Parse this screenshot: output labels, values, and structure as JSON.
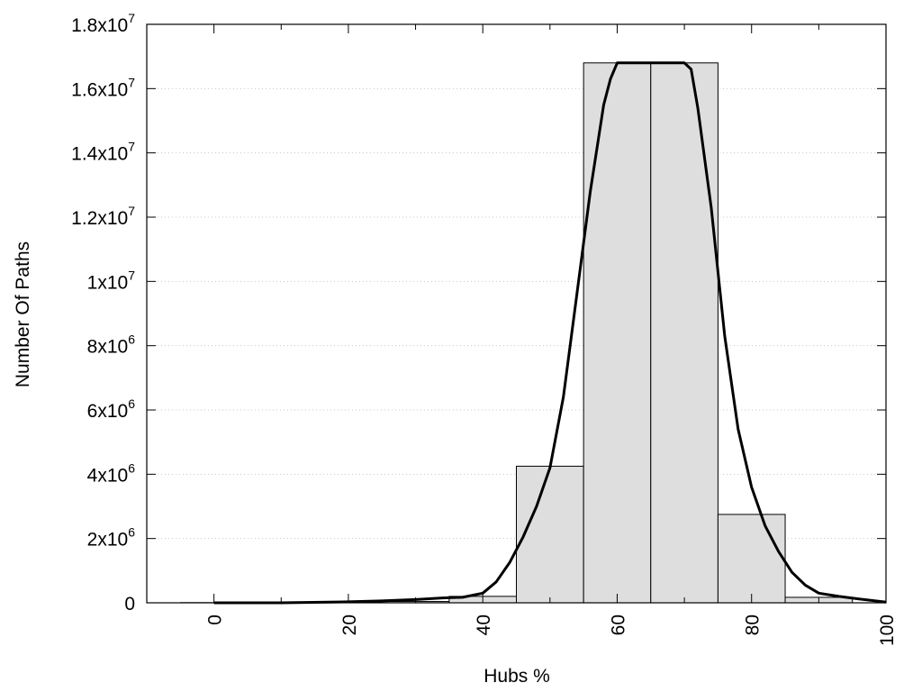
{
  "chart_data": {
    "type": "bar",
    "xlabel": "Hubs %",
    "ylabel": "Number Of Paths",
    "xlim": [
      -10,
      100
    ],
    "ylim": [
      0,
      18000000
    ],
    "x_ticks": [
      {
        "value": 0,
        "label": "0"
      },
      {
        "value": 20,
        "label": "20"
      },
      {
        "value": 40,
        "label": "40"
      },
      {
        "value": 60,
        "label": "60"
      },
      {
        "value": 80,
        "label": "80"
      },
      {
        "value": 100,
        "label": "100"
      }
    ],
    "x_minor_ticks": [
      10,
      30,
      50,
      70,
      90
    ],
    "y_ticks": [
      {
        "value": 0,
        "mant": "0",
        "exp": ""
      },
      {
        "value": 2000000,
        "mant": "2x10",
        "exp": "6"
      },
      {
        "value": 4000000,
        "mant": "4x10",
        "exp": "6"
      },
      {
        "value": 6000000,
        "mant": "6x10",
        "exp": "6"
      },
      {
        "value": 8000000,
        "mant": "8x10",
        "exp": "6"
      },
      {
        "value": 10000000,
        "mant": "1x10",
        "exp": "7"
      },
      {
        "value": 12000000,
        "mant": "1.2x10",
        "exp": "7"
      },
      {
        "value": 14000000,
        "mant": "1.4x10",
        "exp": "7"
      },
      {
        "value": 16000000,
        "mant": "1.6x10",
        "exp": "7"
      },
      {
        "value": 18000000,
        "mant": "1.8x10",
        "exp": "7"
      }
    ],
    "grid": "horizontal-dotted",
    "bin_width": 10,
    "bins": [
      {
        "center": 0,
        "value": 5000
      },
      {
        "center": 10,
        "value": 8000
      },
      {
        "center": 20,
        "value": 15000
      },
      {
        "center": 30,
        "value": 40000
      },
      {
        "center": 40,
        "value": 200000
      },
      {
        "center": 50,
        "value": 4250000
      },
      {
        "center": 60,
        "value": 16800000
      },
      {
        "center": 70,
        "value": 16800000
      },
      {
        "center": 80,
        "value": 2750000
      },
      {
        "center": 90,
        "value": 170000
      }
    ],
    "curve": {
      "x": [
        0,
        10,
        20,
        25,
        30,
        34,
        37,
        40,
        42,
        44,
        46,
        48,
        50,
        52,
        54,
        56,
        58,
        59,
        60,
        62,
        65,
        68,
        70,
        71,
        72,
        74,
        76,
        78,
        80,
        82,
        84,
        86,
        88,
        90,
        93,
        96,
        100
      ],
      "y": [
        0,
        0,
        30000,
        60000,
        100000,
        150000,
        170000,
        300000,
        650000,
        1250000,
        2050000,
        3000000,
        4200000,
        6400000,
        9600000,
        12800000,
        15500000,
        16300000,
        16800000,
        16800000,
        16800000,
        16800000,
        16800000,
        16600000,
        15400000,
        12300000,
        8300000,
        5400000,
        3600000,
        2400000,
        1600000,
        950000,
        550000,
        300000,
        200000,
        120000,
        20000
      ]
    },
    "colors": {
      "bar_fill": "#dedede",
      "bar_stroke": "#000000",
      "curve": "#000000",
      "grid": "#c8c8c8"
    }
  }
}
